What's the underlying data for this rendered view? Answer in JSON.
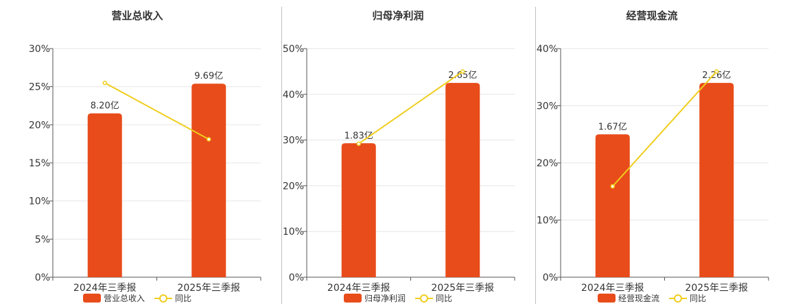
{
  "chart_data": [
    {
      "type": "bar",
      "title": "营业总收入",
      "categories": [
        "2024年三季报",
        "2025年三季报"
      ],
      "series": [
        {
          "name": "营业总收入",
          "type": "bar",
          "values": [
            21.5,
            25.4
          ],
          "labels": [
            "8.20亿",
            "9.69亿"
          ]
        },
        {
          "name": "同比",
          "type": "line",
          "values": [
            25.5,
            18.1
          ]
        }
      ],
      "yticks": [
        "0%",
        "5%",
        "10%",
        "15%",
        "20%",
        "25%",
        "30%"
      ],
      "ylim": [
        0,
        30
      ],
      "grid": true,
      "legend": "bottom"
    },
    {
      "type": "bar",
      "title": "归母净利润",
      "categories": [
        "2024年三季报",
        "2025年三季报"
      ],
      "series": [
        {
          "name": "归母净利润",
          "type": "bar",
          "values": [
            29.3,
            42.5
          ],
          "labels": [
            "1.83亿",
            "2.65亿"
          ]
        },
        {
          "name": "同比",
          "type": "line",
          "values": [
            29.2,
            45.0
          ]
        }
      ],
      "yticks": [
        "0%",
        "10%",
        "20%",
        "30%",
        "40%",
        "50%"
      ],
      "ylim": [
        0,
        50
      ],
      "grid": true,
      "legend": "bottom"
    },
    {
      "type": "bar",
      "title": "经营现金流",
      "categories": [
        "2024年三季报",
        "2025年三季报"
      ],
      "series": [
        {
          "name": "经营现金流",
          "type": "bar",
          "values": [
            25.0,
            34.0
          ],
          "labels": [
            "1.67亿",
            "2.26亿"
          ]
        },
        {
          "name": "同比",
          "type": "line",
          "values": [
            15.9,
            36.0
          ]
        }
      ],
      "yticks": [
        "0%",
        "10%",
        "20%",
        "30%",
        "40%"
      ],
      "ylim": [
        0,
        40
      ],
      "grid": true,
      "legend": "bottom"
    }
  ],
  "colors": {
    "bar": "#e84c1a",
    "line": "#f0cd1c"
  }
}
